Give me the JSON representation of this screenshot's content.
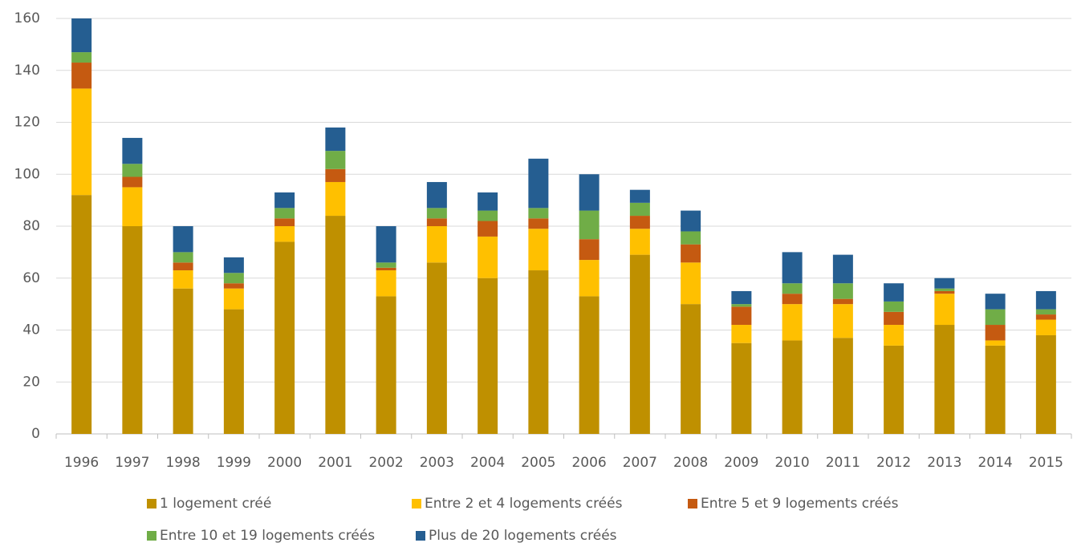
{
  "chart_data": {
    "type": "stacked_bar",
    "categories": [
      "1996",
      "1997",
      "1998",
      "1999",
      "2000",
      "2001",
      "2002",
      "2003",
      "2004",
      "2005",
      "2006",
      "2007",
      "2008",
      "2009",
      "2010",
      "2011",
      "2012",
      "2013",
      "2014",
      "2015"
    ],
    "series": [
      {
        "name": "1 logement créé",
        "color": "#bf9000",
        "values": [
          92,
          80,
          56,
          48,
          74,
          84,
          53,
          66,
          60,
          63,
          53,
          69,
          50,
          35,
          36,
          37,
          34,
          42,
          34,
          38
        ]
      },
      {
        "name": "Entre 2 et 4 logements créés",
        "color": "#ffc000",
        "values": [
          41,
          15,
          7,
          8,
          6,
          13,
          10,
          14,
          16,
          16,
          14,
          10,
          16,
          7,
          14,
          13,
          8,
          12,
          2,
          6
        ]
      },
      {
        "name": "Entre 5 et 9 logements créés",
        "color": "#c55a11",
        "values": [
          10,
          4,
          3,
          2,
          3,
          5,
          1,
          3,
          6,
          4,
          8,
          5,
          7,
          7,
          4,
          2,
          5,
          1,
          6,
          2
        ]
      },
      {
        "name": "Entre 10 et 19 logements créés",
        "color": "#70ad47",
        "values": [
          4,
          5,
          4,
          4,
          4,
          7,
          2,
          4,
          4,
          4,
          11,
          5,
          5,
          1,
          4,
          6,
          4,
          1,
          6,
          2
        ]
      },
      {
        "name": "Plus de 20 logements créés",
        "color": "#255e91",
        "values": [
          13,
          10,
          10,
          6,
          6,
          9,
          14,
          10,
          7,
          19,
          14,
          5,
          8,
          5,
          12,
          11,
          7,
          4,
          6,
          7
        ]
      }
    ],
    "ylim": [
      0,
      160
    ],
    "yticks": [
      0,
      20,
      40,
      60,
      80,
      100,
      120,
      140,
      160
    ],
    "grid": true,
    "legend": "bottom"
  }
}
